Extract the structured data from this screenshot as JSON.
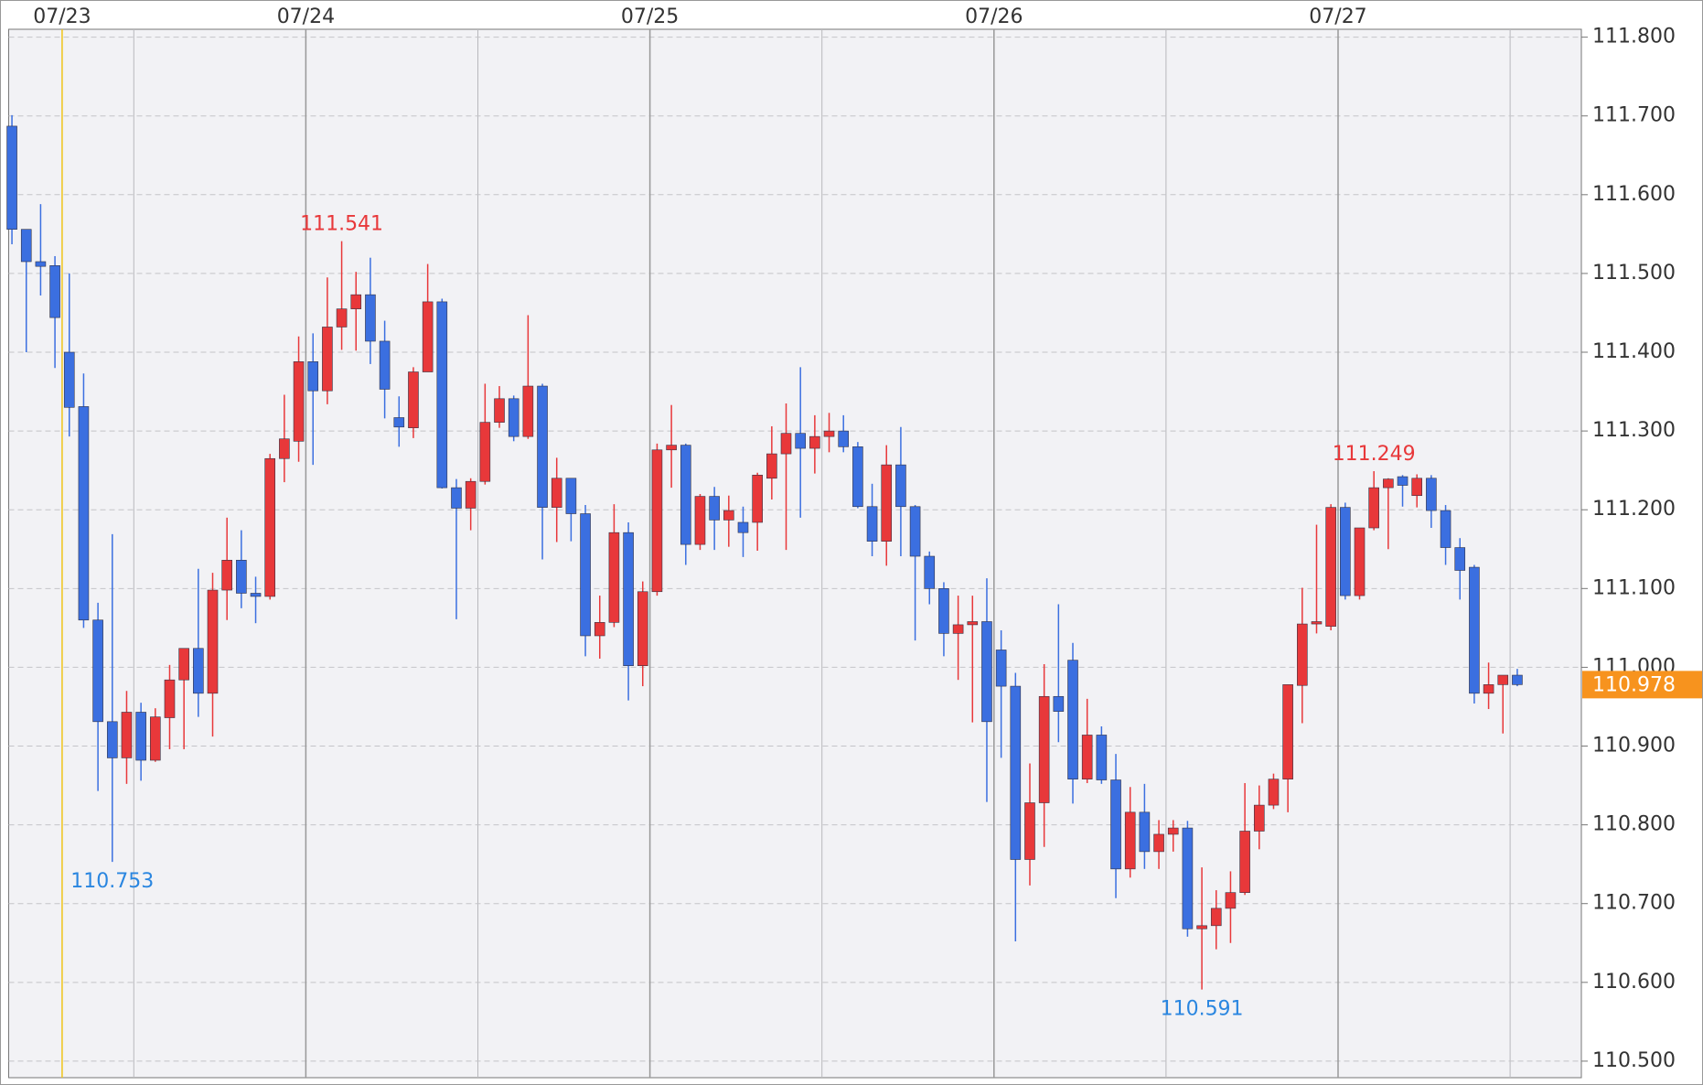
{
  "chart_data": {
    "type": "candlestick",
    "categories": [
      null,
      null,
      null,
      null,
      "07/23",
      null,
      null,
      null,
      null,
      null,
      null,
      null,
      null,
      null,
      null,
      null,
      null,
      null,
      null,
      null,
      null,
      "07/24",
      null,
      null,
      null,
      null,
      null,
      null,
      null,
      null,
      null,
      null,
      null,
      null,
      null,
      null,
      null,
      null,
      null,
      null,
      null,
      null,
      null,
      null,
      null,
      "07/25",
      null,
      null,
      null,
      null,
      null,
      null,
      null,
      null,
      null,
      null,
      null,
      null,
      null,
      null,
      null,
      null,
      null,
      null,
      null,
      null,
      null,
      null,
      null,
      "07/26",
      null,
      null,
      null,
      null,
      null,
      null,
      null,
      null,
      null,
      null,
      null,
      null,
      null,
      null,
      null,
      null,
      null,
      null,
      null,
      null,
      null,
      null,
      null,
      "07/27",
      null,
      null,
      null,
      null,
      null,
      null,
      null,
      null,
      null,
      null,
      null,
      null
    ],
    "open": [
      111.687,
      111.556,
      111.515,
      111.51,
      111.4,
      111.331,
      111.06,
      110.931,
      110.885,
      110.943,
      110.882,
      110.936,
      110.984,
      111.024,
      110.967,
      111.098,
      111.136,
      111.094,
      111.09,
      111.265,
      111.287,
      111.388,
      111.351,
      111.432,
      111.455,
      111.473,
      111.414,
      111.317,
      111.304,
      111.375,
      111.464,
      111.228,
      111.202,
      111.236,
      111.311,
      111.341,
      111.293,
      111.357,
      111.203,
      111.24,
      111.195,
      111.04,
      111.057,
      111.171,
      111.002,
      111.096,
      111.276,
      111.282,
      111.156,
      111.217,
      111.187,
      111.184,
      111.184,
      111.24,
      111.271,
      111.297,
      111.278,
      111.293,
      111.3,
      111.28,
      111.204,
      111.16,
      111.257,
      111.204,
      111.141,
      111.1,
      111.043,
      111.054,
      111.058,
      111.022,
      110.976,
      110.756,
      110.828,
      110.963,
      111.009,
      110.858,
      110.914,
      110.857,
      110.744,
      110.816,
      110.766,
      110.788,
      110.796,
      110.668,
      110.672,
      110.694,
      110.714,
      110.792,
      110.825,
      110.858,
      110.977,
      111.055,
      111.052,
      111.203,
      111.091,
      111.177,
      111.228,
      111.242,
      111.218,
      111.24,
      111.199,
      111.152,
      111.127,
      110.967,
      110.978,
      110.99
    ],
    "high": [
      111.701,
      111.556,
      111.588,
      111.522,
      111.5,
      111.373,
      111.082,
      111.169,
      110.97,
      110.955,
      110.948,
      111.003,
      111.024,
      111.125,
      111.12,
      111.19,
      111.174,
      111.115,
      111.271,
      111.346,
      111.42,
      111.424,
      111.495,
      111.541,
      111.502,
      111.52,
      111.44,
      111.344,
      111.381,
      111.512,
      111.468,
      111.239,
      111.24,
      111.36,
      111.357,
      111.345,
      111.447,
      111.36,
      111.266,
      111.24,
      111.206,
      111.091,
      111.207,
      111.184,
      111.109,
      111.284,
      111.333,
      111.284,
      111.22,
      111.229,
      111.218,
      111.204,
      111.247,
      111.306,
      111.335,
      111.381,
      111.32,
      111.323,
      111.32,
      111.286,
      111.233,
      111.282,
      111.305,
      111.206,
      111.147,
      111.108,
      111.091,
      111.091,
      111.113,
      111.047,
      110.993,
      110.878,
      111.004,
      111.08,
      111.031,
      110.96,
      110.925,
      110.89,
      110.848,
      110.852,
      110.806,
      110.806,
      110.805,
      110.746,
      110.717,
      110.741,
      110.853,
      110.85,
      110.865,
      110.978,
      111.101,
      111.181,
      111.207,
      111.209,
      111.177,
      111.249,
      111.24,
      111.244,
      111.245,
      111.244,
      111.206,
      111.164,
      111.13,
      111.006,
      110.989,
      110.998
    ],
    "low": [
      111.537,
      111.4,
      111.472,
      111.38,
      111.293,
      111.05,
      110.843,
      110.753,
      110.852,
      110.856,
      110.88,
      110.896,
      110.896,
      110.937,
      110.912,
      111.06,
      111.075,
      111.056,
      111.086,
      111.235,
      111.261,
      111.257,
      111.334,
      111.403,
      111.402,
      111.385,
      111.316,
      111.28,
      111.291,
      111.375,
      111.227,
      111.061,
      111.174,
      111.232,
      111.304,
      111.287,
      111.29,
      111.137,
      111.159,
      111.16,
      111.014,
      111.011,
      111.051,
      110.958,
      110.976,
      111.091,
      111.228,
      111.13,
      111.149,
      111.149,
      111.153,
      111.14,
      111.148,
      111.213,
      111.149,
      111.19,
      111.246,
      111.273,
      111.273,
      111.202,
      111.141,
      111.129,
      111.141,
      111.034,
      111.08,
      111.014,
      110.984,
      110.93,
      110.829,
      110.885,
      110.652,
      110.723,
      110.772,
      110.905,
      110.827,
      110.853,
      110.852,
      110.707,
      110.733,
      110.744,
      110.744,
      110.766,
      110.658,
      110.591,
      110.642,
      110.65,
      110.711,
      110.769,
      110.82,
      110.816,
      110.929,
      111.043,
      111.047,
      111.086,
      111.086,
      111.174,
      111.15,
      111.204,
      111.203,
      111.177,
      111.13,
      111.086,
      110.954,
      110.947,
      110.916,
      110.976
    ],
    "close": [
      111.556,
      111.515,
      111.509,
      111.444,
      111.33,
      111.06,
      110.931,
      110.885,
      110.943,
      110.882,
      110.937,
      110.984,
      111.024,
      110.967,
      111.098,
      111.136,
      111.094,
      111.09,
      111.265,
      111.29,
      111.388,
      111.351,
      111.432,
      111.455,
      111.473,
      111.414,
      111.353,
      111.305,
      111.375,
      111.464,
      111.228,
      111.202,
      111.236,
      111.311,
      111.341,
      111.293,
      111.357,
      111.203,
      111.24,
      111.195,
      111.04,
      111.057,
      111.171,
      111.002,
      111.096,
      111.276,
      111.282,
      111.156,
      111.217,
      111.187,
      111.199,
      111.171,
      111.244,
      111.271,
      111.297,
      111.278,
      111.293,
      111.3,
      111.28,
      111.204,
      111.16,
      111.257,
      111.204,
      111.141,
      111.1,
      111.043,
      111.054,
      111.058,
      110.931,
      110.976,
      110.756,
      110.828,
      110.963,
      110.944,
      110.858,
      110.914,
      110.857,
      110.744,
      110.816,
      110.766,
      110.788,
      110.796,
      110.668,
      110.672,
      110.694,
      110.714,
      110.792,
      110.825,
      110.858,
      110.978,
      111.055,
      111.058,
      111.203,
      111.091,
      111.177,
      111.228,
      111.239,
      111.231,
      111.24,
      111.199,
      111.152,
      111.123,
      110.967,
      110.978,
      110.99,
      110.978
    ],
    "up_color": "#e8383a",
    "down_color": "#3b6fe0",
    "ylim": [
      110.479,
      111.81
    ],
    "yticks": [
      {
        "value": 110.5,
        "label": "110.500"
      },
      {
        "value": 110.6,
        "label": "110.600"
      },
      {
        "value": 110.7,
        "label": "110.700"
      },
      {
        "value": 110.8,
        "label": "110.800"
      },
      {
        "value": 110.9,
        "label": "110.900"
      },
      {
        "value": 111.0,
        "label": "111.000"
      },
      {
        "value": 111.1,
        "label": "111.100"
      },
      {
        "value": 111.2,
        "label": "111.200"
      },
      {
        "value": 111.3,
        "label": "111.300"
      },
      {
        "value": 111.4,
        "label": "111.400"
      },
      {
        "value": 111.5,
        "label": "111.500"
      },
      {
        "value": 111.6,
        "label": "111.600"
      },
      {
        "value": 111.7,
        "label": "111.700"
      },
      {
        "value": 111.8,
        "label": "111.800"
      }
    ],
    "high_labels": [
      111.541,
      111.249
    ],
    "low_labels": [
      110.753,
      110.591
    ],
    "last_price": 110.978,
    "last_price_color": "#f7931e",
    "grid": true
  }
}
